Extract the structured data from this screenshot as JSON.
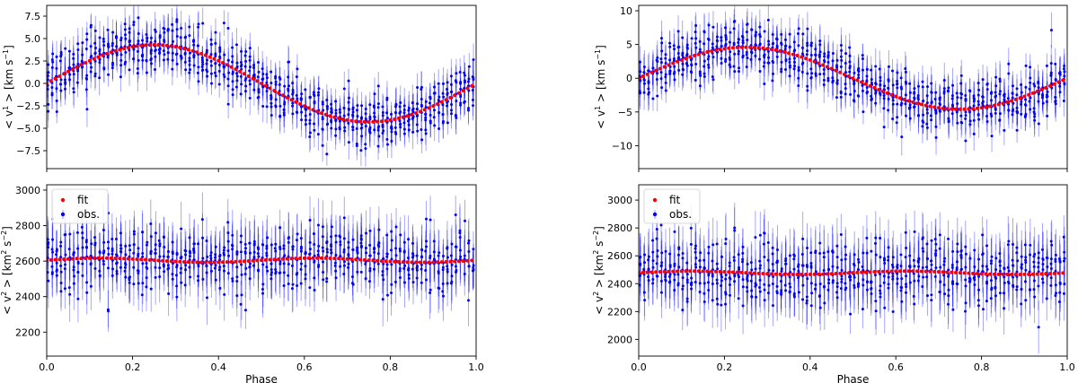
{
  "chart_data": [
    {
      "id": "left-top",
      "type": "scatter",
      "title": "",
      "xlabel": "",
      "ylabel": "< v¹ > [km s⁻¹]",
      "ylabel_parts": [
        "< v",
        "1",
        " > [km s",
        "−1",
        "]"
      ],
      "xlim": [
        0.0,
        1.0
      ],
      "ylim": [
        -9.5,
        8.7
      ],
      "xticks": [
        0.0,
        0.2,
        0.4,
        0.6,
        0.8,
        1.0
      ],
      "show_xtick_labels": false,
      "yticks": [
        -7.5,
        -5.0,
        -2.5,
        0.0,
        2.5,
        5.0,
        7.5
      ],
      "ytick_labels": [
        "−7.5",
        "−5.0",
        "−2.5",
        "0.0",
        "2.5",
        "5.0",
        "7.5"
      ],
      "series": [
        {
          "name": "fit",
          "kind": "model",
          "color": "#ff0000",
          "model": "sine",
          "amplitude": 4.3,
          "offset": 0.0,
          "phase_shift": 0.0,
          "x_start": 0.0,
          "x_end": 0.99,
          "x_step": 0.01
        },
        {
          "name": "obs.",
          "kind": "observations",
          "color": "#0000ff",
          "scatter": 1.5,
          "errorbar": 1.7,
          "n_per_bin": 8,
          "x_step": 0.01
        }
      ],
      "legend": null
    },
    {
      "id": "left-bottom",
      "type": "scatter",
      "title": "",
      "xlabel": "Phase",
      "ylabel": "< v² > [km² s⁻²]",
      "ylabel_parts": [
        "< v",
        "2",
        " > [km",
        "2",
        " s",
        "−2",
        "]"
      ],
      "xlim": [
        0.0,
        1.0
      ],
      "ylim": [
        2065,
        3030
      ],
      "xticks": [
        0.0,
        0.2,
        0.4,
        0.6,
        0.8,
        1.0
      ],
      "xtick_labels": [
        "0.0",
        "0.2",
        "0.4",
        "0.6",
        "0.8",
        "1.0"
      ],
      "show_xtick_labels": true,
      "yticks": [
        2200,
        2400,
        2600,
        2800,
        3000
      ],
      "ytick_labels": [
        "2200",
        "2400",
        "2600",
        "2800",
        "3000"
      ],
      "series": [
        {
          "name": "fit",
          "kind": "model",
          "color": "#ff0000",
          "model": "double-sine",
          "amplitude": 12,
          "offset": 2605,
          "x_start": 0.0,
          "x_end": 0.99,
          "x_step": 0.01
        },
        {
          "name": "obs.",
          "kind": "observations",
          "color": "#0000ff",
          "scatter": 90,
          "errorbar": 130,
          "n_per_bin": 7,
          "x_step": 0.01
        }
      ],
      "legend": {
        "placement": "top-left",
        "entries": [
          "fit",
          "obs."
        ]
      }
    },
    {
      "id": "right-top",
      "type": "scatter",
      "title": "",
      "xlabel": "",
      "ylabel": "< v¹ > [km s⁻¹]",
      "ylabel_parts": [
        "< v",
        "1",
        " > [km s",
        "−1",
        "]"
      ],
      "xlim": [
        0.0,
        1.0
      ],
      "ylim": [
        -13.4,
        10.8
      ],
      "xticks": [
        0.0,
        0.2,
        0.4,
        0.6,
        0.8,
        1.0
      ],
      "show_xtick_labels": false,
      "yticks": [
        -10,
        -5,
        0,
        5,
        10
      ],
      "ytick_labels": [
        "−10",
        "−5",
        "0",
        "5",
        "10"
      ],
      "series": [
        {
          "name": "fit",
          "kind": "model",
          "color": "#ff0000",
          "model": "sine",
          "amplitude": 4.6,
          "offset": 0.0,
          "phase_shift": 0.0,
          "x_start": 0.0,
          "x_end": 0.99,
          "x_step": 0.01
        },
        {
          "name": "obs.",
          "kind": "observations",
          "color": "#0000ff",
          "scatter": 2.0,
          "errorbar": 2.3,
          "n_per_bin": 8,
          "x_step": 0.01
        }
      ],
      "legend": null
    },
    {
      "id": "right-bottom",
      "type": "scatter",
      "title": "",
      "xlabel": "Phase",
      "ylabel": "< v² > [km² s⁻²]",
      "ylabel_parts": [
        "< v",
        "2",
        " > [km",
        "2",
        " s",
        "−2",
        "]"
      ],
      "xlim": [
        0.0,
        1.0
      ],
      "ylim": [
        1880,
        3110
      ],
      "xticks": [
        0.0,
        0.2,
        0.4,
        0.6,
        0.8,
        1.0
      ],
      "xtick_labels": [
        "0.0",
        "0.2",
        "0.4",
        "0.6",
        "0.8",
        "1.0"
      ],
      "show_xtick_labels": true,
      "yticks": [
        2000,
        2200,
        2400,
        2600,
        2800,
        3000
      ],
      "ytick_labels": [
        "2000",
        "2200",
        "2400",
        "2600",
        "2800",
        "3000"
      ],
      "series": [
        {
          "name": "fit",
          "kind": "model",
          "color": "#ff0000",
          "model": "double-sine",
          "amplitude": 12,
          "offset": 2478,
          "x_start": 0.0,
          "x_end": 0.99,
          "x_step": 0.01
        },
        {
          "name": "obs.",
          "kind": "observations",
          "color": "#0000ff",
          "scatter": 120,
          "errorbar": 170,
          "n_per_bin": 7,
          "x_step": 0.01
        }
      ],
      "legend": {
        "placement": "top-left",
        "entries": [
          "fit",
          "obs."
        ]
      }
    }
  ]
}
